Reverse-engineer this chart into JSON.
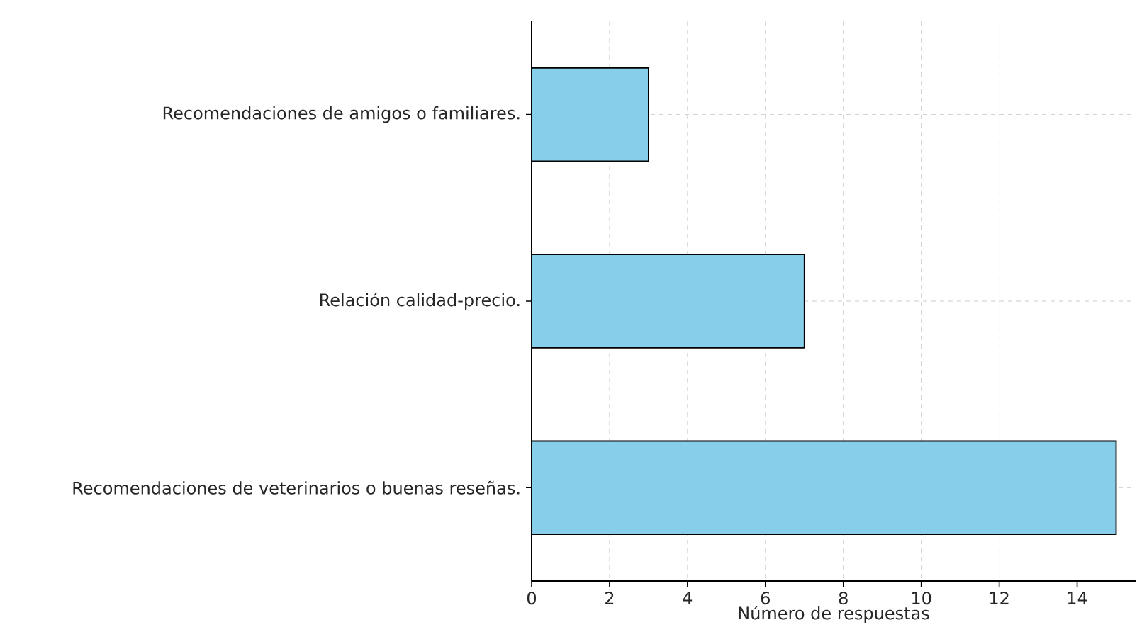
{
  "chart_data": {
    "type": "bar",
    "orientation": "horizontal",
    "xlabel": "Número de respuestas",
    "categories": [
      "Recomendaciones de amigos o familiares.",
      "Relación calidad-precio.",
      "Recomendaciones de veterinarios o buenas reseñas."
    ],
    "values": [
      3,
      7,
      15
    ],
    "color": "#87ceeb",
    "xlim": [
      0,
      15.5
    ],
    "xticks": [
      0,
      2,
      4,
      6,
      8,
      10,
      12,
      14
    ],
    "grid": true
  }
}
